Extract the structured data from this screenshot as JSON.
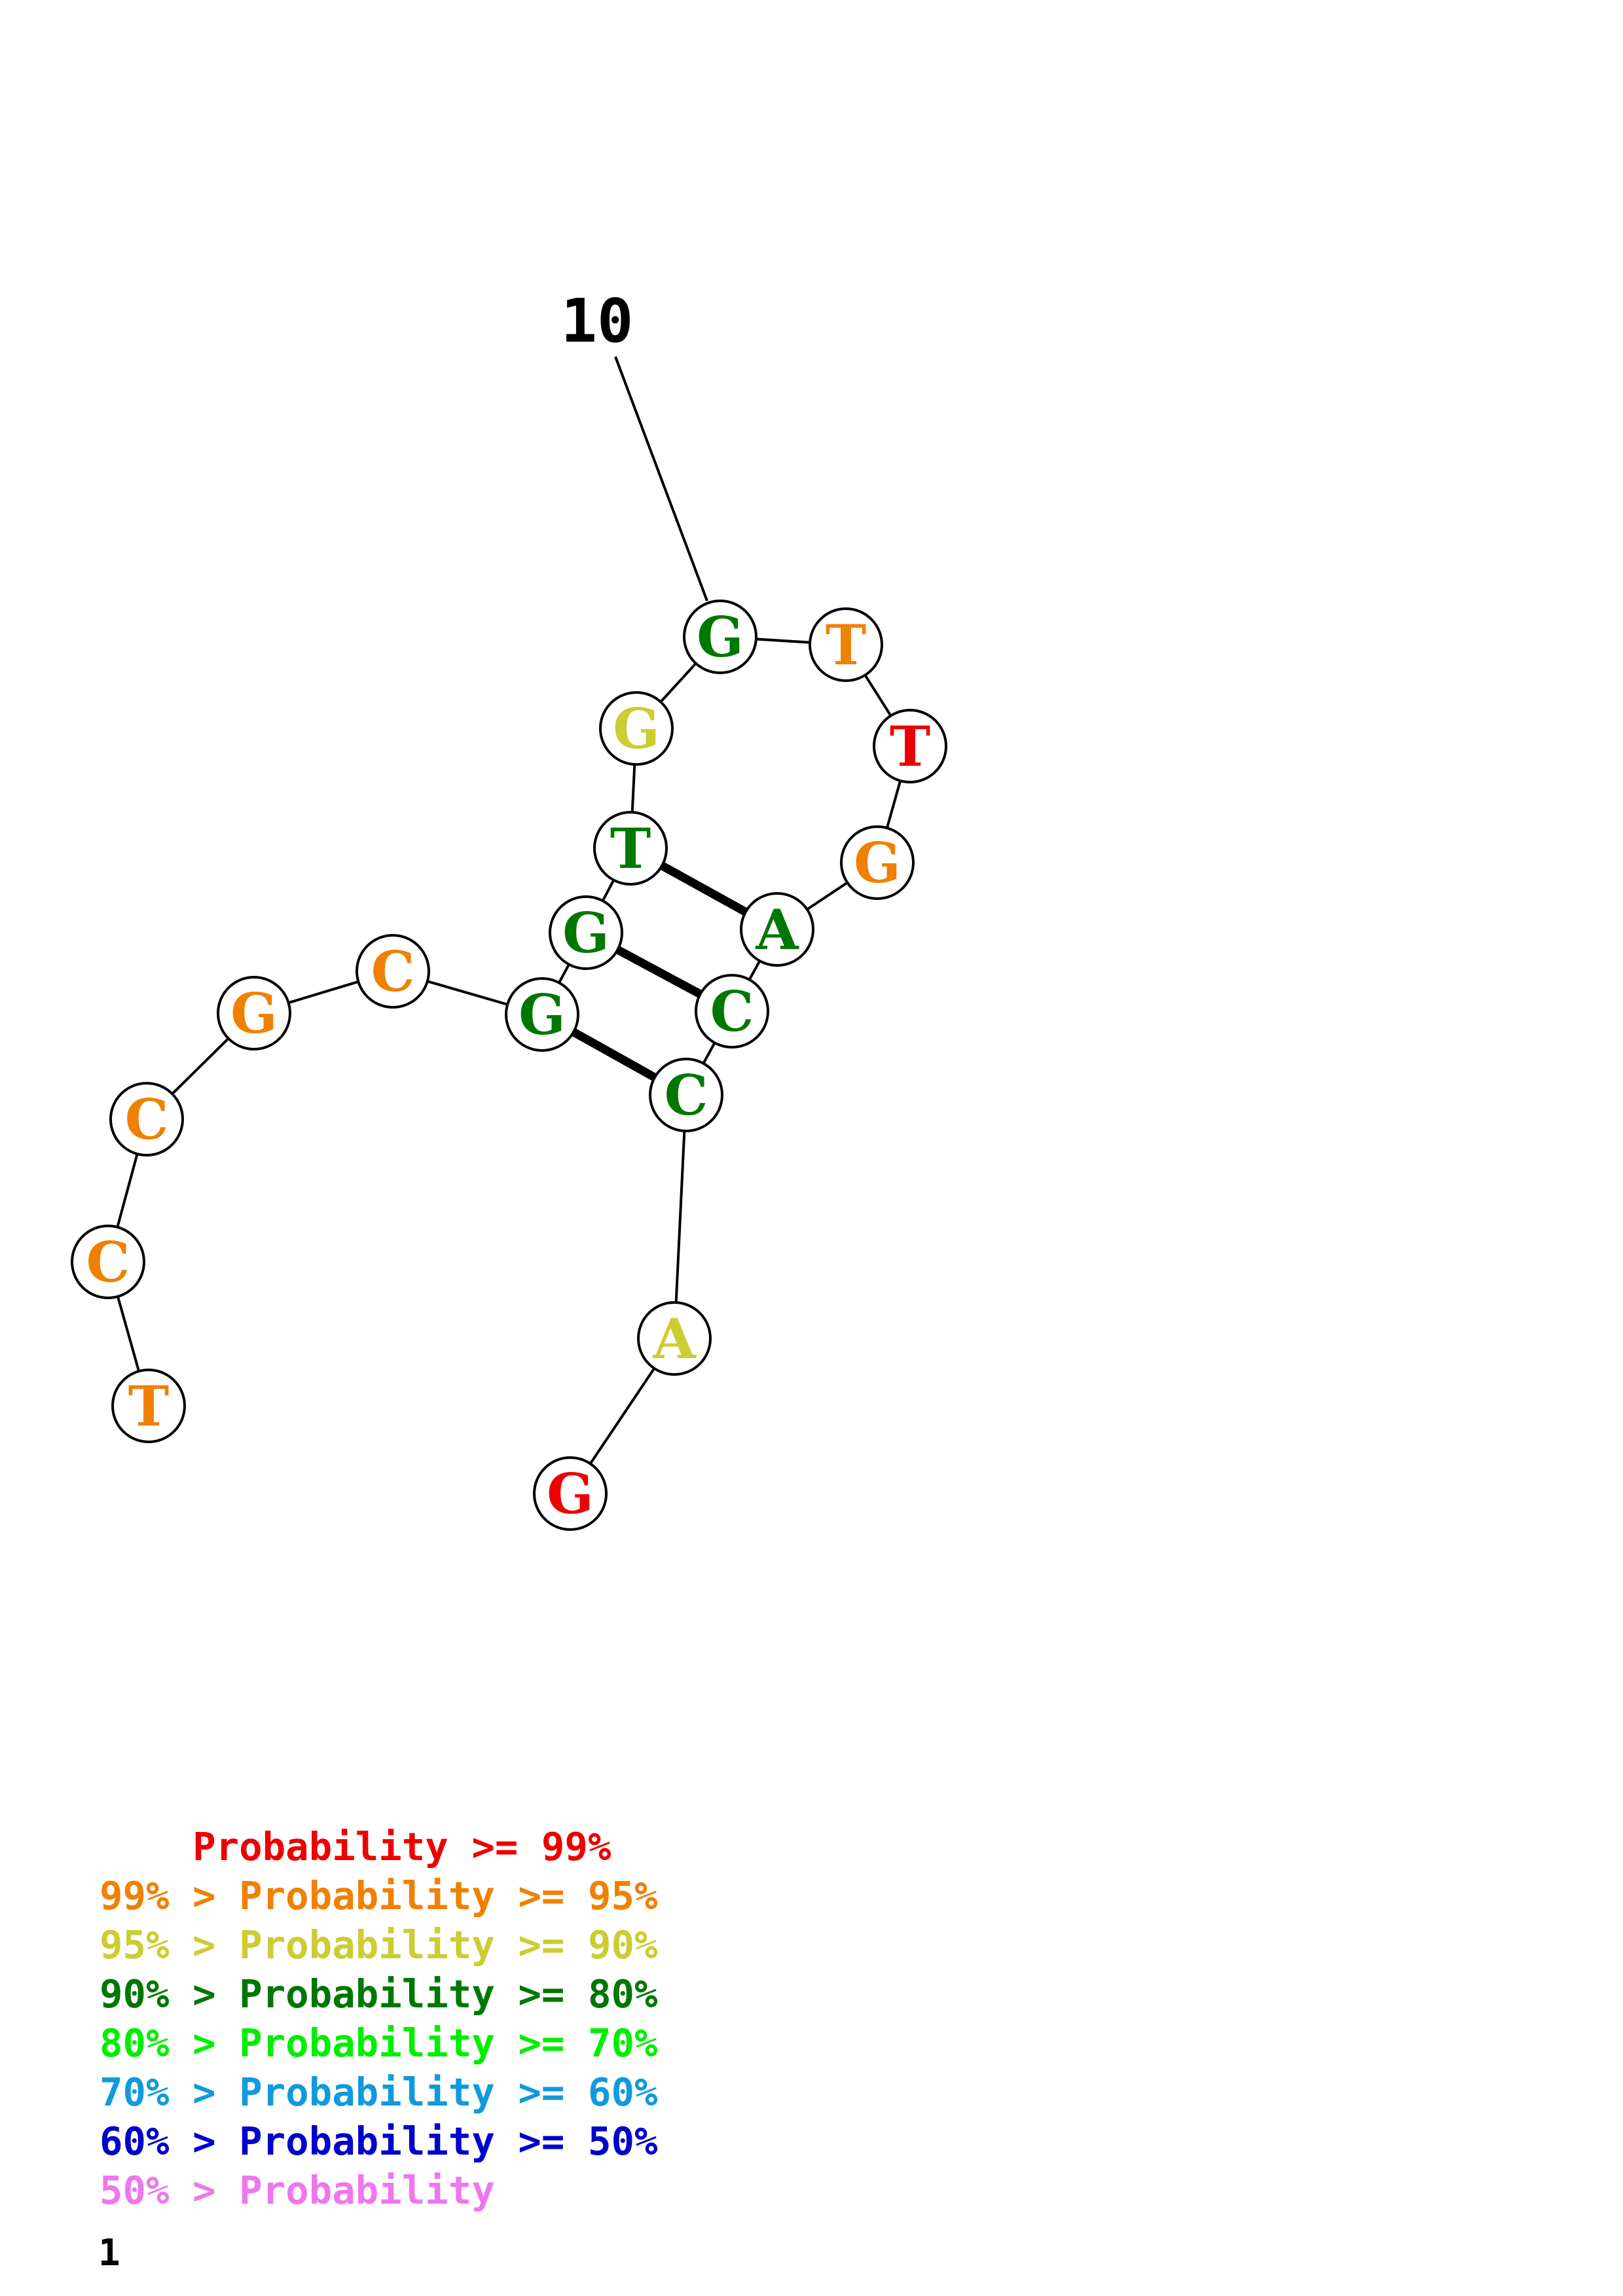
{
  "diagram": {
    "position_label": "10",
    "nucleotides": [
      {
        "id": "n1",
        "letter": "T",
        "prob": "95-99"
      },
      {
        "id": "n2",
        "letter": "C",
        "prob": "95-99"
      },
      {
        "id": "n3",
        "letter": "C",
        "prob": "95-99"
      },
      {
        "id": "n4",
        "letter": "G",
        "prob": "95-99"
      },
      {
        "id": "n5",
        "letter": "C",
        "prob": "95-99"
      },
      {
        "id": "n6",
        "letter": "G",
        "prob": "80-90"
      },
      {
        "id": "n7",
        "letter": "G",
        "prob": "80-90"
      },
      {
        "id": "n8",
        "letter": "T",
        "prob": "80-90"
      },
      {
        "id": "n9",
        "letter": "G",
        "prob": "90-95"
      },
      {
        "id": "n10",
        "letter": "G",
        "prob": "80-90"
      },
      {
        "id": "n11",
        "letter": "T",
        "prob": "95-99"
      },
      {
        "id": "n12",
        "letter": "T",
        "prob": "99+"
      },
      {
        "id": "n13",
        "letter": "G",
        "prob": "95-99"
      },
      {
        "id": "n14",
        "letter": "A",
        "prob": "80-90"
      },
      {
        "id": "n15",
        "letter": "C",
        "prob": "80-90"
      },
      {
        "id": "n16",
        "letter": "C",
        "prob": "80-90"
      },
      {
        "id": "n17",
        "letter": "A",
        "prob": "90-95"
      },
      {
        "id": "n18",
        "letter": "G",
        "prob": "99+"
      }
    ],
    "pairs": [
      [
        "n8",
        "n14"
      ],
      [
        "n7",
        "n15"
      ],
      [
        "n6",
        "n16"
      ]
    ]
  },
  "colors": {
    "99+": "#ee0000",
    "95-99": "#f08000",
    "90-95": "#cccc33",
    "80-90": "#007700",
    "70-80": "#00ee00",
    "60-70": "#1199dd",
    "50-60": "#0000cc",
    "below-50": "#ee77ee"
  },
  "legend": [
    {
      "text": "    Probability >= 99%",
      "color": "#ee0000"
    },
    {
      "text": "99% > Probability >= 95%",
      "color": "#f08000"
    },
    {
      "text": "95% > Probability >= 90%",
      "color": "#cccc33"
    },
    {
      "text": "90% > Probability >= 80%",
      "color": "#007700"
    },
    {
      "text": "80% > Probability >= 70%",
      "color": "#00ee00"
    },
    {
      "text": "70% > Probability >= 60%",
      "color": "#1199dd"
    },
    {
      "text": "60% > Probability >= 50%",
      "color": "#0000cc"
    },
    {
      "text": "50% > Probability",
      "color": "#ee77ee"
    }
  ],
  "footer_number": "1"
}
